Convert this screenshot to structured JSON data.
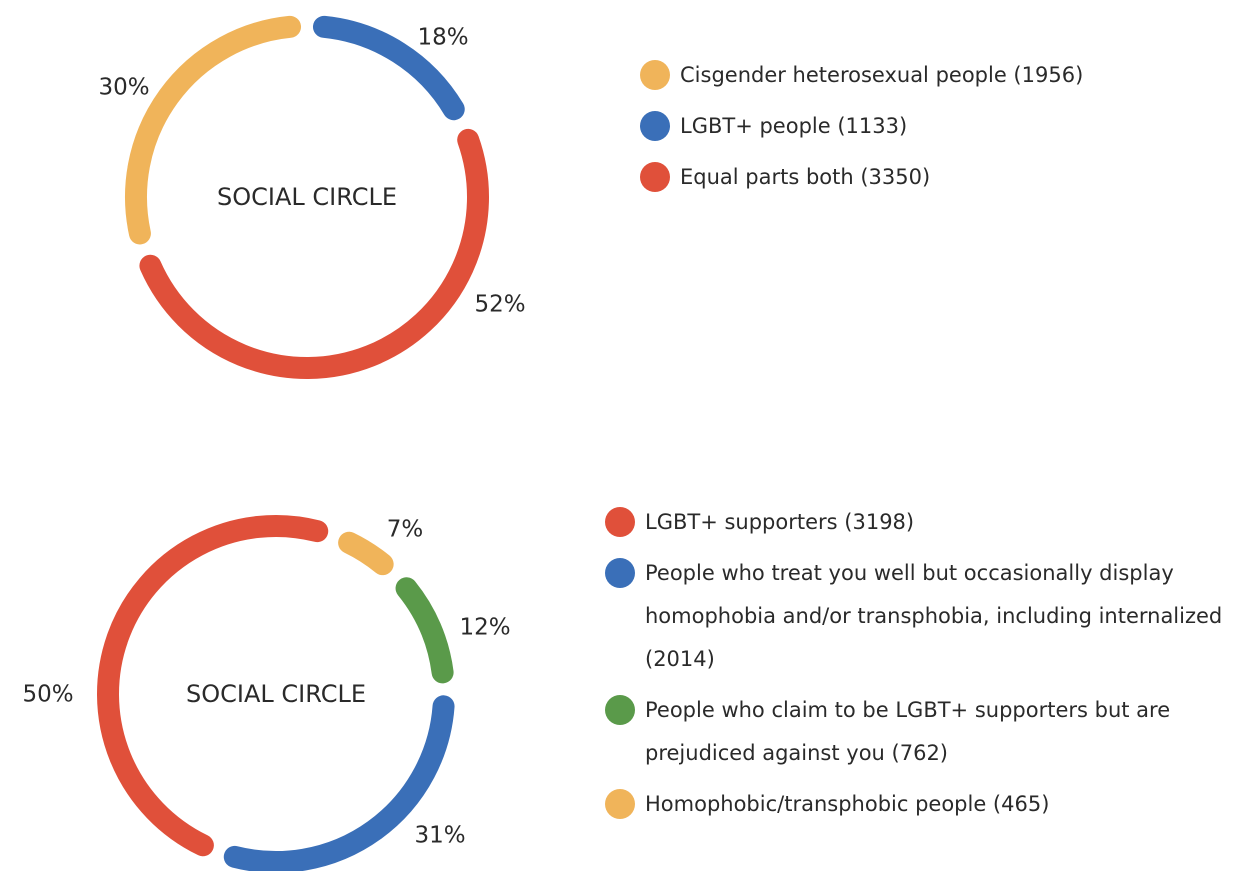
{
  "chart_data": [
    {
      "type": "donut",
      "center_label": "SOCIAL CIRCLE",
      "categories": [
        "Cisgender heterosexual people (1956)",
        "LGBT+ people (1133)",
        "Equal parts both (3350)"
      ],
      "values": [
        30,
        18,
        52
      ],
      "value_labels": [
        "30%",
        "18%",
        "52%"
      ],
      "colors": [
        "#f0b45a",
        "#3a6fb8",
        "#e0503a"
      ]
    },
    {
      "type": "donut",
      "center_label": "SOCIAL CIRCLE",
      "categories": [
        "LGBT+ supporters (3198)",
        "People who treat you well but occasionally display homophobia and/or transphobia, including internalized (2014)",
        "People who claim to be LGBT+ supporters but are prejudiced against you (762)",
        "Homophobic/transphobic people (465)"
      ],
      "values": [
        50,
        31,
        12,
        7
      ],
      "value_labels": [
        "50%",
        "31%",
        "12%",
        "7%"
      ],
      "colors": [
        "#e0503a",
        "#3a6fb8",
        "#5a9a4a",
        "#f0b45a"
      ]
    }
  ]
}
